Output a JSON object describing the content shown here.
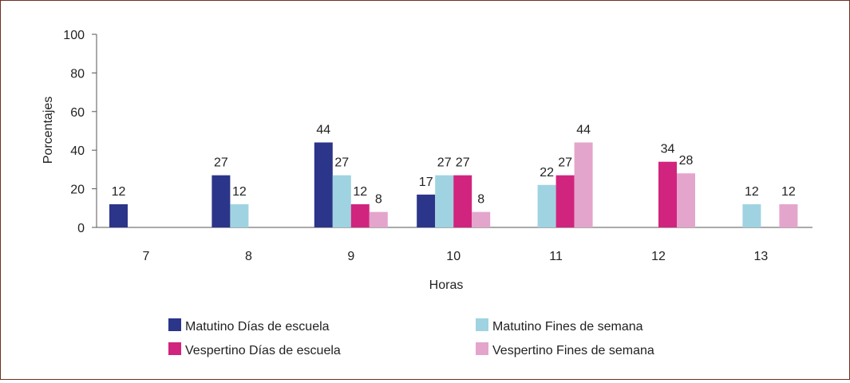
{
  "chart_data": {
    "type": "bar",
    "title": "",
    "xlabel": "Horas",
    "ylabel": "Porcentajes",
    "ylim": [
      0,
      100
    ],
    "yticks": [
      0,
      20,
      40,
      60,
      80,
      100
    ],
    "grid": false,
    "legend_position": "bottom",
    "categories": [
      "7",
      "8",
      "9",
      "10",
      "11",
      "12",
      "13"
    ],
    "series": [
      {
        "name": "Matutino Días de escuela",
        "color": "#2b3589",
        "values": [
          12,
          27,
          44,
          17,
          null,
          null,
          null
        ]
      },
      {
        "name": "Matutino Fines de semana",
        "color": "#9fd3e2",
        "values": [
          null,
          12,
          27,
          27,
          22,
          null,
          12
        ]
      },
      {
        "name": "Vespertino Días de escuela",
        "color": "#d1247e",
        "values": [
          null,
          null,
          12,
          27,
          27,
          34,
          null
        ]
      },
      {
        "name": "Vespertino Fines de semana",
        "color": "#e4a5cc",
        "values": [
          null,
          null,
          8,
          8,
          44,
          28,
          12
        ]
      }
    ]
  }
}
